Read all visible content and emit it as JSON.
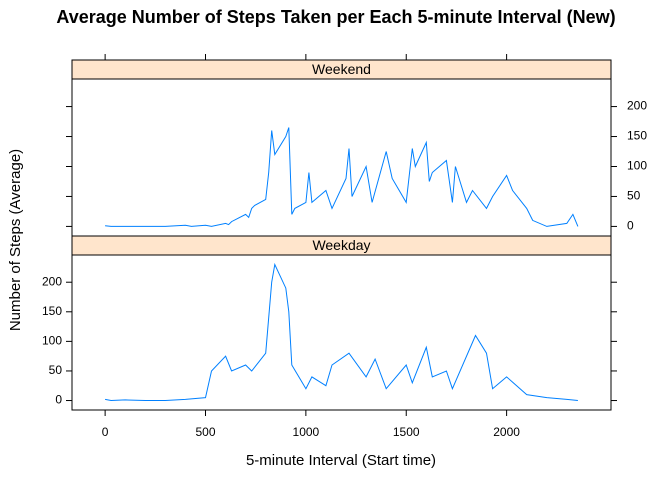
{
  "chart_data": {
    "type": "line",
    "title": "Average Number of Steps Taken per Each 5-minute Interval (New)",
    "xlabel": "5-minute Interval (Start time)",
    "ylabel": "Number of Steps (Average)",
    "xlim": [
      -165,
      2520
    ],
    "xticks": [
      0,
      500,
      1000,
      1500,
      2000
    ],
    "ylim": [
      -16,
      246
    ],
    "yticks": [
      0,
      50,
      100,
      150,
      200
    ],
    "series": [
      {
        "name": "Weekend",
        "color": "#0080ff",
        "x": [
          0,
          30,
          100,
          200,
          300,
          400,
          430,
          500,
          530,
          600,
          615,
          630,
          700,
          715,
          730,
          745,
          800,
          815,
          830,
          845,
          900,
          915,
          930,
          945,
          1000,
          1015,
          1030,
          1100,
          1130,
          1200,
          1215,
          1230,
          1300,
          1330,
          1400,
          1430,
          1500,
          1530,
          1545,
          1600,
          1615,
          1630,
          1700,
          1730,
          1745,
          1800,
          1830,
          1900,
          1930,
          2000,
          2030,
          2100,
          2130,
          2200,
          2300,
          2330,
          2355
        ],
        "values": [
          1,
          0,
          0,
          0,
          0,
          2,
          0,
          2,
          0,
          5,
          3,
          8,
          20,
          15,
          30,
          35,
          45,
          90,
          160,
          120,
          150,
          165,
          20,
          30,
          40,
          90,
          40,
          60,
          30,
          80,
          130,
          50,
          100,
          40,
          125,
          80,
          40,
          130,
          100,
          140,
          75,
          90,
          110,
          40,
          100,
          40,
          60,
          30,
          50,
          85,
          60,
          30,
          10,
          0,
          5,
          20,
          0
        ]
      },
      {
        "name": "Weekday",
        "color": "#0080ff",
        "x": [
          0,
          30,
          100,
          200,
          300,
          400,
          500,
          530,
          600,
          630,
          700,
          730,
          800,
          830,
          845,
          900,
          915,
          930,
          1000,
          1030,
          1100,
          1130,
          1215,
          1300,
          1345,
          1400,
          1500,
          1530,
          1600,
          1630,
          1700,
          1730,
          1845,
          1900,
          1930,
          2000,
          2100,
          2200,
          2300,
          2355
        ],
        "values": [
          2,
          0,
          1,
          0,
          0,
          2,
          5,
          50,
          75,
          50,
          60,
          50,
          80,
          200,
          230,
          190,
          150,
          60,
          20,
          40,
          25,
          60,
          80,
          40,
          70,
          20,
          60,
          30,
          90,
          40,
          50,
          20,
          110,
          80,
          20,
          40,
          10,
          5,
          2,
          0
        ]
      }
    ]
  }
}
